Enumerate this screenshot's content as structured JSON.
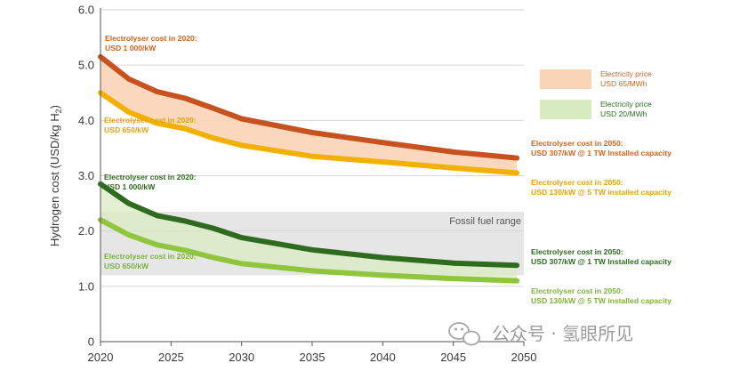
{
  "colors": {
    "orange_high": "#c8521f",
    "orange_low": "#f2b100",
    "orange_fill": "#f9d4b7",
    "green_high": "#2e6b1e",
    "green_low": "#8fc63e",
    "green_fill": "#d9ebc1",
    "band": "#e6e6e6",
    "grid": "#d6d6d6",
    "text_orange": "#d0641c",
    "text_amber": "#e6a10e",
    "text_green": "#2e6b1e",
    "text_lightgreen": "#7cb33a"
  },
  "chart_data": {
    "type": "line",
    "ylabel": "Hydrogen cost (USD/kg H",
    "ylabel_sub": "2",
    "ylabel_end": ")",
    "xlim": [
      2020,
      2050
    ],
    "ylim": [
      0,
      6
    ],
    "x_ticks": [
      "2020",
      "2025",
      "2030",
      "2035",
      "2040",
      "2045",
      "2050"
    ],
    "y_ticks": [
      "0",
      "1.0",
      "2.0",
      "3.0",
      "4.0",
      "5.0",
      "6.0"
    ],
    "fossil_range": {
      "label": "Fossil fuel range",
      "min": 1.2,
      "max": 2.35
    },
    "series": [
      {
        "name": "Electricity USD 65/MWh - Electrolyser high cost",
        "x": [
          2020,
          2022,
          2024,
          2026,
          2028,
          2030,
          2035,
          2040,
          2045,
          2049.5
        ],
        "values": [
          5.15,
          4.75,
          4.52,
          4.4,
          4.22,
          4.03,
          3.78,
          3.6,
          3.43,
          3.32
        ]
      },
      {
        "name": "Electricity USD 65/MWh - Electrolyser low cost",
        "x": [
          2020,
          2022,
          2024,
          2026,
          2028,
          2030,
          2035,
          2040,
          2045,
          2049.5
        ],
        "values": [
          4.5,
          4.15,
          3.95,
          3.85,
          3.68,
          3.55,
          3.35,
          3.25,
          3.14,
          3.05
        ]
      },
      {
        "name": "Electricity USD 20/MWh - Electrolyser high cost",
        "x": [
          2020,
          2022,
          2024,
          2026,
          2028,
          2030,
          2035,
          2040,
          2045,
          2049.5
        ],
        "values": [
          2.85,
          2.5,
          2.28,
          2.18,
          2.05,
          1.88,
          1.66,
          1.52,
          1.42,
          1.38
        ]
      },
      {
        "name": "Electricity USD 20/MWh - Electrolyser low cost",
        "x": [
          2020,
          2022,
          2024,
          2026,
          2028,
          2030,
          2035,
          2040,
          2045,
          2049.5
        ],
        "values": [
          2.2,
          1.93,
          1.75,
          1.65,
          1.52,
          1.41,
          1.28,
          1.2,
          1.14,
          1.1
        ]
      }
    ],
    "annotations": {
      "orange_high_2020": [
        "Electrolyser cost in 2020:",
        "USD 1 000/kW"
      ],
      "orange_low_2020": [
        "Electrolyser cost in 2020:",
        "USD 650/kW"
      ],
      "green_high_2020": [
        "Electrolyser cost in 2020:",
        "USD 1 000/kW"
      ],
      "green_low_2020": [
        "Electrolyser cost in 2020:",
        "USD 650/kW"
      ],
      "orange_high_2050": [
        "Electrolyser cost in 2050:",
        "USD 307/kW @ 1 TW Installed capacity"
      ],
      "orange_low_2050": [
        "Electrolyser cost in 2050:",
        "USD 130/kW @ 5 TW installed capacity"
      ],
      "green_high_2050": [
        "Electrolyser cost in 2050:",
        "USD 307/kW @ 1 TW Installed capacity"
      ],
      "green_low_2050": [
        "Electrolyser cost in 2050:",
        "USD 130/kW @ 5 TW installed capacity"
      ]
    },
    "legend": [
      {
        "lines": [
          "Electricity price",
          "USD 65/MWh"
        ],
        "color_key": "orange"
      },
      {
        "lines": [
          "Electricity price",
          "USD 20/MWh"
        ],
        "color_key": "green"
      }
    ]
  },
  "watermark": {
    "text": "公众号 · 氢眼所见",
    "icon": "wechat-icon"
  }
}
